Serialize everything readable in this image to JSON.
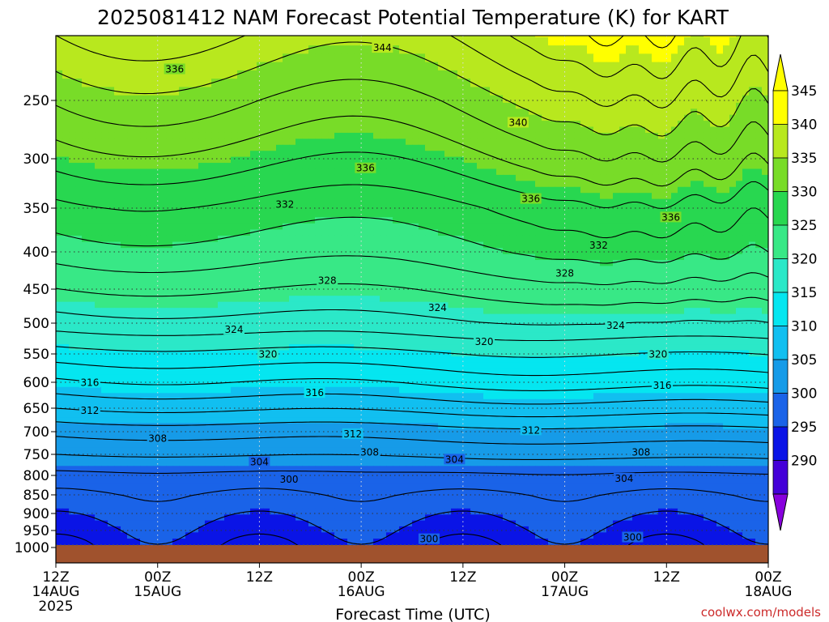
{
  "chart_data": {
    "type": "heatmap",
    "title": "2025081412 NAM Forecast Potential Temperature (K) for KART",
    "xlabel": "Forecast Time (UTC)",
    "ylabel": "",
    "credit": "coolwx.com/models",
    "y_scale": "pressure (log-like, inverted)",
    "ylim": [
      1030,
      200
    ],
    "xlim_hours": [
      0,
      84
    ],
    "y_ticks": [
      {
        "label": "250",
        "p": 250
      },
      {
        "label": "300",
        "p": 300
      },
      {
        "label": "350",
        "p": 350
      },
      {
        "label": "400",
        "p": 400
      },
      {
        "label": "450",
        "p": 450
      },
      {
        "label": "500",
        "p": 500
      },
      {
        "label": "550",
        "p": 550
      },
      {
        "label": "600",
        "p": 600
      },
      {
        "label": "650",
        "p": 650
      },
      {
        "label": "700",
        "p": 700
      },
      {
        "label": "750",
        "p": 750
      },
      {
        "label": "800",
        "p": 800
      },
      {
        "label": "850",
        "p": 850
      },
      {
        "label": "900",
        "p": 900
      },
      {
        "label": "950",
        "p": 950
      },
      {
        "label": "1000",
        "p": 1000
      }
    ],
    "x_ticks": [
      {
        "hour": 0,
        "label": "12Z",
        "date": "14AUG",
        "year": "2025"
      },
      {
        "hour": 12,
        "label": "00Z",
        "date": "15AUG",
        "year": ""
      },
      {
        "hour": 24,
        "label": "12Z",
        "date": "",
        "year": ""
      },
      {
        "hour": 36,
        "label": "00Z",
        "date": "16AUG",
        "year": ""
      },
      {
        "hour": 48,
        "label": "12Z",
        "date": "",
        "year": ""
      },
      {
        "hour": 60,
        "label": "00Z",
        "date": "17AUG",
        "year": ""
      },
      {
        "hour": 72,
        "label": "12Z",
        "date": "",
        "year": ""
      },
      {
        "hour": 84,
        "label": "00Z",
        "date": "18AUG",
        "year": ""
      }
    ],
    "colorbar": {
      "labels": [
        "345",
        "340",
        "335",
        "330",
        "325",
        "320",
        "315",
        "310",
        "305",
        "300",
        "295",
        "290"
      ],
      "bands": [
        {
          "lo": 345,
          "hi": 350,
          "color": "#ffff00"
        },
        {
          "lo": 340,
          "hi": 345,
          "color": "#b8e81e"
        },
        {
          "lo": 335,
          "hi": 340,
          "color": "#78dc28"
        },
        {
          "lo": 330,
          "hi": 335,
          "color": "#28d750"
        },
        {
          "lo": 325,
          "hi": 330,
          "color": "#38e886"
        },
        {
          "lo": 320,
          "hi": 325,
          "color": "#2be8c8"
        },
        {
          "lo": 315,
          "hi": 320,
          "color": "#05e6f0"
        },
        {
          "lo": 310,
          "hi": 315,
          "color": "#11bff0"
        },
        {
          "lo": 305,
          "hi": 310,
          "color": "#169be8"
        },
        {
          "lo": 300,
          "hi": 305,
          "color": "#1a63e8"
        },
        {
          "lo": 295,
          "hi": 300,
          "color": "#0a14e6"
        },
        {
          "lo": 290,
          "hi": 295,
          "color": "#4400d8"
        }
      ],
      "over_color": "#ffff00",
      "under_color": "#8800dd"
    },
    "ground_color": "#a0522d",
    "isentrope_profile": [
      {
        "p": 1000,
        "theta": 299
      },
      {
        "p": 950,
        "theta": 300
      },
      {
        "p": 900,
        "theta": 301
      },
      {
        "p": 850,
        "theta": 302
      },
      {
        "p": 800,
        "theta": 303.5
      },
      {
        "p": 750,
        "theta": 306
      },
      {
        "p": 700,
        "theta": 308.5
      },
      {
        "p": 650,
        "theta": 312
      },
      {
        "p": 600,
        "theta": 315.5
      },
      {
        "p": 550,
        "theta": 319
      },
      {
        "p": 500,
        "theta": 323
      },
      {
        "p": 450,
        "theta": 326
      },
      {
        "p": 400,
        "theta": 329
      },
      {
        "p": 350,
        "theta": 331.5
      },
      {
        "p": 300,
        "theta": 335
      },
      {
        "p": 250,
        "theta": 338.5
      },
      {
        "p": 200,
        "theta": 344
      }
    ],
    "isentrope_labels": [
      {
        "theta": 340,
        "hour": 18.5,
        "p": 213
      },
      {
        "theta": 344,
        "hour": 38.5,
        "p": 222
      },
      {
        "theta": 336,
        "hour": 14,
        "p": 233
      },
      {
        "theta": 340,
        "hour": 54.5,
        "p": 268
      },
      {
        "theta": 336,
        "hour": 36.5,
        "p": 309
      },
      {
        "theta": 336,
        "hour": 56,
        "p": 340
      },
      {
        "theta": 336,
        "hour": 72.5,
        "p": 360
      },
      {
        "theta": 332,
        "hour": 27,
        "p": 346
      },
      {
        "theta": 332,
        "hour": 64,
        "p": 392
      },
      {
        "theta": 328,
        "hour": 32,
        "p": 438
      },
      {
        "theta": 328,
        "hour": 60,
        "p": 428
      },
      {
        "theta": 324,
        "hour": 21,
        "p": 510
      },
      {
        "theta": 324,
        "hour": 45,
        "p": 477
      },
      {
        "theta": 324,
        "hour": 66,
        "p": 504
      },
      {
        "theta": 320,
        "hour": 25,
        "p": 551
      },
      {
        "theta": 320,
        "hour": 50.5,
        "p": 530
      },
      {
        "theta": 320,
        "hour": 71,
        "p": 551
      },
      {
        "theta": 316,
        "hour": 4,
        "p": 601
      },
      {
        "theta": 316,
        "hour": 30.5,
        "p": 620
      },
      {
        "theta": 316,
        "hour": 71.5,
        "p": 606
      },
      {
        "theta": 312,
        "hour": 4,
        "p": 655
      },
      {
        "theta": 312,
        "hour": 35,
        "p": 705
      },
      {
        "theta": 312,
        "hour": 56,
        "p": 697
      },
      {
        "theta": 308,
        "hour": 12,
        "p": 715
      },
      {
        "theta": 308,
        "hour": 37,
        "p": 745
      },
      {
        "theta": 308,
        "hour": 69,
        "p": 745
      },
      {
        "theta": 304,
        "hour": 24,
        "p": 768
      },
      {
        "theta": 304,
        "hour": 47,
        "p": 762
      },
      {
        "theta": 304,
        "hour": 67,
        "p": 808
      },
      {
        "theta": 300,
        "hour": 27.5,
        "p": 810
      },
      {
        "theta": 300,
        "hour": 44,
        "p": 975
      },
      {
        "theta": 300,
        "hour": 68,
        "p": 970
      }
    ]
  }
}
